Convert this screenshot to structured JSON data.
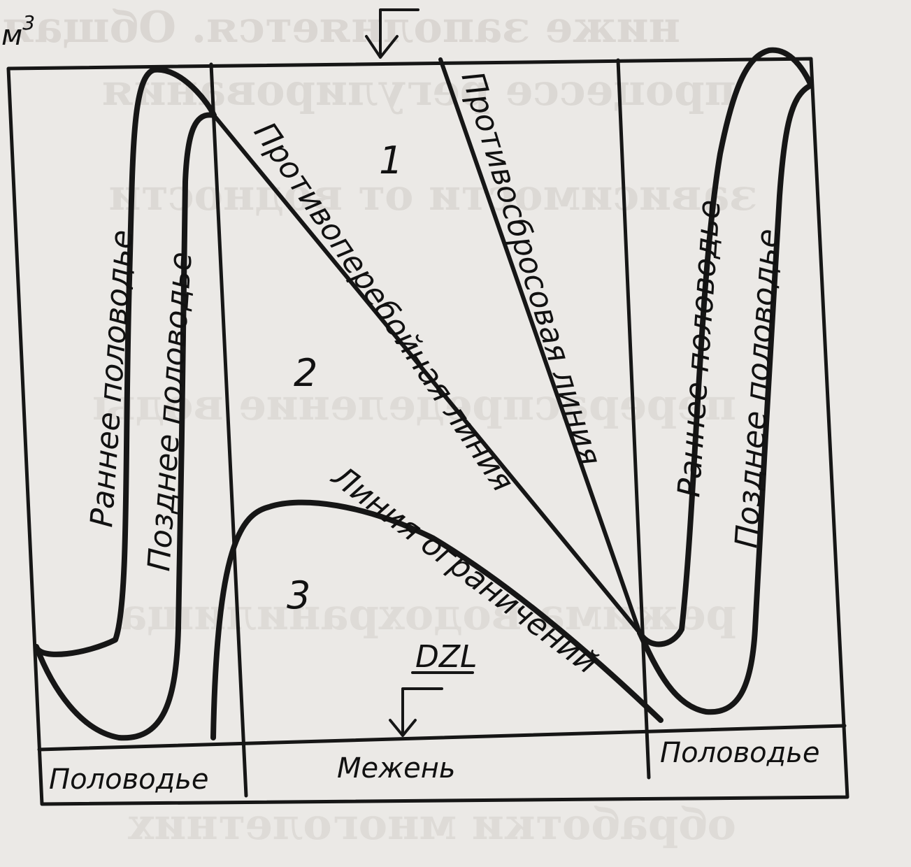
{
  "unit": {
    "base": "м",
    "exponent": "3"
  },
  "zones": [
    "1",
    "2",
    "3"
  ],
  "lines": {
    "anti_overflow": "Противоперебойная линия",
    "anti_discharge": "Противосбросовая линия",
    "restriction": "Линия ограничений"
  },
  "curves": {
    "early_flood_left": "Раннее половодье",
    "late_flood_left": "Позднее половодье",
    "early_flood_right": "Раннее половодье",
    "late_flood_right": "Позднее половодье"
  },
  "dzl": "DZL",
  "seasons": [
    "Половодье",
    "Межень",
    "Половодье"
  ]
}
